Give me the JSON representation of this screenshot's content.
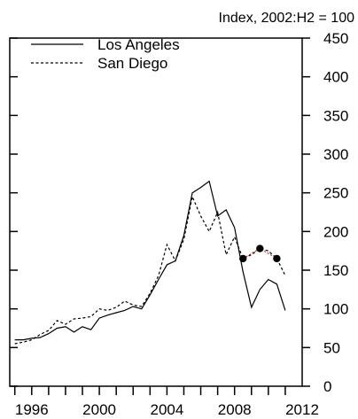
{
  "chart_data": {
    "type": "line",
    "title": "Index, 2002:H2 = 100",
    "xlabel": "",
    "ylabel": "",
    "xlim": [
      1994.7,
      2012
    ],
    "ylim": [
      0,
      450
    ],
    "x_ticks": [
      1996,
      2000,
      2004,
      2008,
      2012
    ],
    "x_minor_ticks": [
      1995,
      1996,
      1997,
      1998,
      1999,
      2000,
      2001,
      2002,
      2003,
      2004,
      2005,
      2006,
      2007,
      2008,
      2009,
      2010,
      2011
    ],
    "y_ticks": [
      0,
      50,
      100,
      150,
      200,
      250,
      300,
      350,
      400,
      450
    ],
    "grid": false,
    "legend_position": "top-left",
    "x": [
      1995.0,
      1995.5,
      1996.0,
      1996.5,
      1997.0,
      1997.5,
      1998.0,
      1998.5,
      1999.0,
      1999.5,
      2000.0,
      2000.5,
      2001.0,
      2001.5,
      2002.0,
      2002.5,
      2003.0,
      2003.5,
      2004.0,
      2004.5,
      2005.0,
      2005.5,
      2006.0,
      2006.5,
      2007.0,
      2007.5,
      2008.0,
      2008.5,
      2009.0,
      2009.5,
      2010.0,
      2010.5,
      2011.0
    ],
    "series": [
      {
        "name": "Los Angeles",
        "style": "solid",
        "color": "#000000",
        "values": [
          60,
          60,
          62,
          63,
          68,
          75,
          77,
          70,
          77,
          73,
          88,
          92,
          95,
          98,
          103,
          100,
          118,
          138,
          157,
          162,
          195,
          250,
          257,
          265,
          220,
          228,
          205,
          148,
          102,
          125,
          138,
          132,
          98
        ]
      },
      {
        "name": "San Diego",
        "style": "dashed",
        "color": "#000000",
        "values": [
          55,
          57,
          60,
          67,
          72,
          85,
          80,
          87,
          88,
          90,
          100,
          98,
          102,
          110,
          105,
          103,
          120,
          143,
          183,
          162,
          190,
          245,
          220,
          200,
          225,
          170,
          193,
          165,
          170,
          178,
          175,
          165,
          143
        ]
      },
      {
        "name": "",
        "style": "dotted-red-markers",
        "color": "#cc2200",
        "x": [
          2008.5,
          2009.5,
          2010.5
        ],
        "values": [
          165,
          178,
          165
        ]
      }
    ]
  }
}
